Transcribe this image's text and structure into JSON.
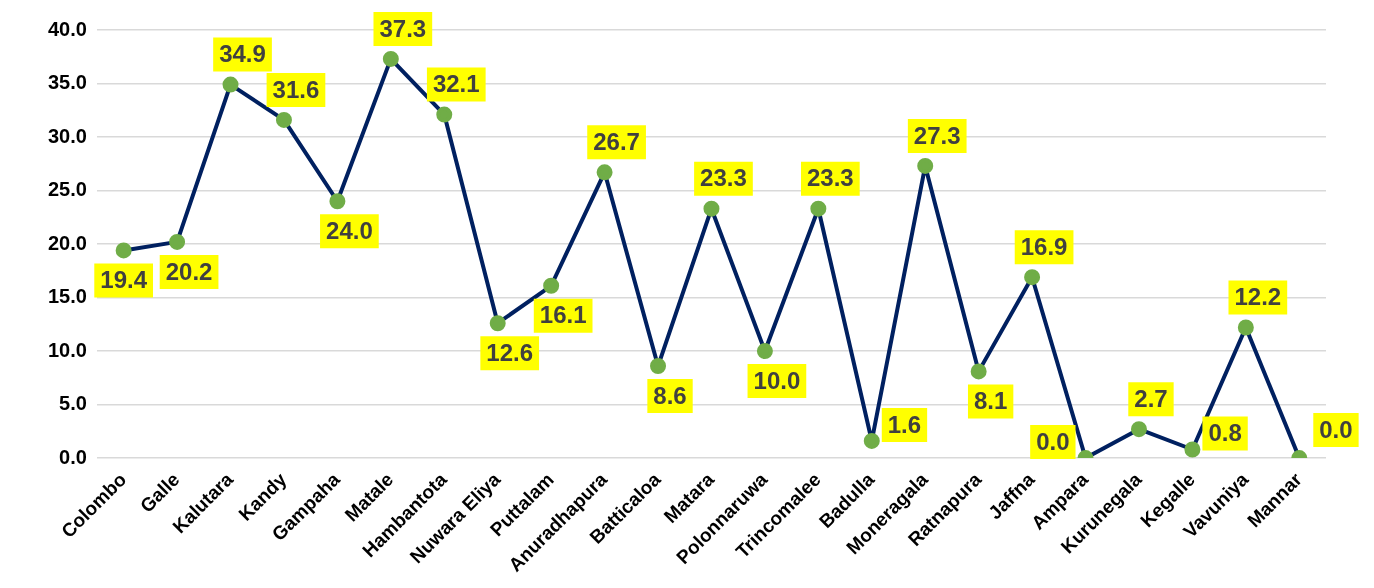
{
  "chart_data": {
    "type": "line",
    "categories": [
      "Colombo",
      "Galle",
      "Kalutara",
      "Kandy",
      "Gampaha",
      "Matale",
      "Hambantota",
      "Nuwara Eliya",
      "Puttalam",
      "Anuradhapura",
      "Batticaloa",
      "Matara",
      "Polonnaruwa",
      "Trincomalee",
      "Badulla",
      "Moneragala",
      "Ratnapura",
      "Jaffna",
      "Ampara",
      "Kurunegala",
      "Kegalle",
      "Vavuniya",
      "Mannar"
    ],
    "series": [
      {
        "color": "#002060",
        "colors": [
          "#70ad47",
          "#70ad47",
          "#70ad47",
          "#70ad47",
          "#70ad47",
          "#70ad47",
          "#70ad47",
          "#70ad47",
          "#70ad47",
          "#70ad47",
          "#70ad47",
          "#70ad47",
          "#70ad47",
          "#70ad47",
          "#70ad47",
          "#70ad47",
          "#70ad47",
          "#70ad47",
          "#70ad47",
          "#70ad47",
          "#70ad47",
          "#70ad47",
          "#70ad47"
        ],
        "values": [
          19.4,
          20.2,
          34.9,
          31.6,
          24.0,
          37.3,
          32.1,
          12.6,
          16.1,
          26.7,
          8.6,
          23.3,
          10.0,
          23.3,
          1.6,
          27.3,
          8.1,
          16.9,
          0.0,
          2.7,
          0.8,
          12.2,
          0.0
        ],
        "value_labels": [
          "19.4",
          "20.2",
          "34.9",
          "31.6",
          "24.0",
          "37.3",
          "32.1",
          "12.6",
          "16.1",
          "26.7",
          "8.6",
          "23.3",
          "10.0",
          "23.3",
          "1.6",
          "27.3",
          "8.1",
          "16.9",
          "0.0",
          "2.7",
          "0.8",
          "12.2",
          "0.0"
        ]
      }
    ],
    "ylim": [
      0,
      40
    ],
    "yticks": [
      {
        "value": 0,
        "label": "0.0"
      },
      {
        "value": 5,
        "label": "5.0"
      },
      {
        "value": 10,
        "label": "10.0"
      },
      {
        "value": 15,
        "label": "15.0"
      },
      {
        "value": 20,
        "label": "20.0"
      },
      {
        "value": 25,
        "label": "25.0"
      },
      {
        "value": 30,
        "label": "30.0"
      },
      {
        "value": 35,
        "label": "35.0"
      },
      {
        "value": 40,
        "label": "40.0"
      }
    ],
    "grid": "y",
    "legend": false,
    "marker": "circle",
    "line_style": "solid"
  }
}
